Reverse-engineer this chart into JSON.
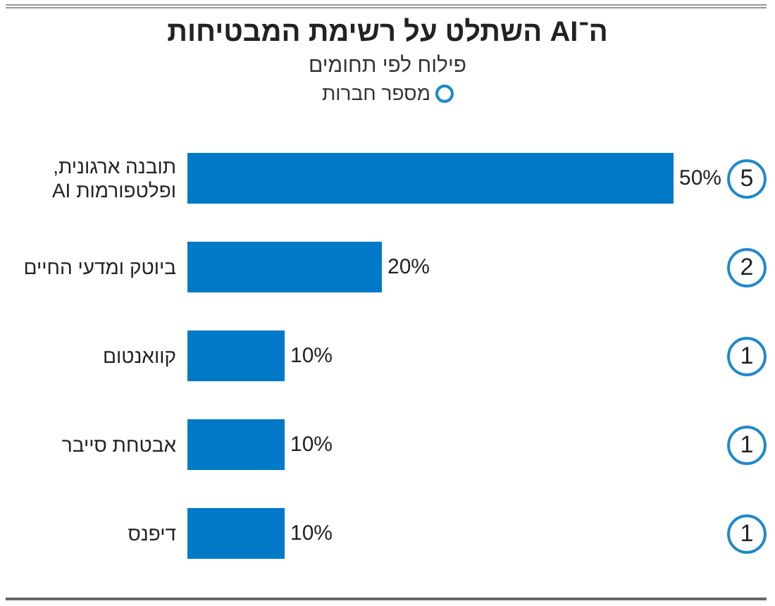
{
  "chart_data": {
    "type": "bar",
    "orientation": "horizontal",
    "title": "ה־AI השתלט על רשימת המבטיחות",
    "subtitle": "פילוח לפי תחומים",
    "categories": [
      "תובנה ארגונית, ופלטפורמות AI",
      "ביוטק ומדעי החיים",
      "קוואנטום",
      "אבטחת סייבר",
      "דיפנס"
    ],
    "series": [
      {
        "color": "#0079c8",
        "values": [
          50,
          20,
          10,
          10,
          10
        ],
        "value_labels": [
          "50%",
          "20%",
          "10%",
          "10%",
          "10%"
        ]
      }
    ],
    "annotations": [
      "מספר חברות",
      "5",
      "2",
      "1",
      "1",
      "1"
    ],
    "grid": false,
    "tick_labels": "y"
  }
}
